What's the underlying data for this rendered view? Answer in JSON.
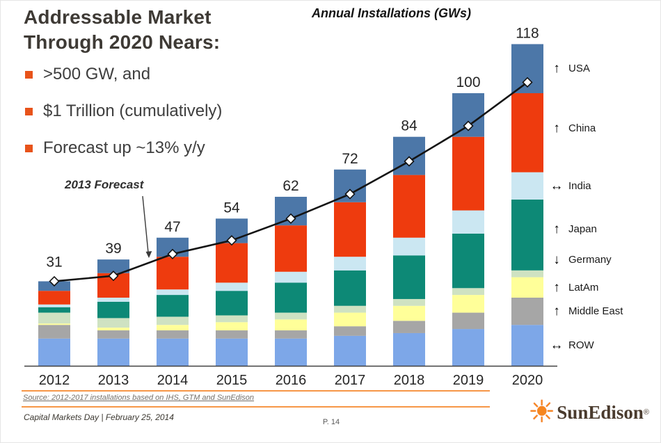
{
  "title": "Addressable Market\nThrough 2020 Nears:",
  "bullets": [
    ">500 GW, and",
    "$1 Trillion (cumulatively)",
    "Forecast up ~13% y/y"
  ],
  "annotation": "2013 Forecast",
  "chart_title": "Annual Installations (GWs)",
  "chart_data": {
    "type": "bar",
    "subtype": "stacked-bar-with-line-overlay",
    "title": "Annual Installations (GWs)",
    "categories": [
      "2012",
      "2013",
      "2014",
      "2015",
      "2016",
      "2017",
      "2018",
      "2019",
      "2020"
    ],
    "totals": [
      31,
      39,
      47,
      54,
      62,
      72,
      84,
      100,
      118
    ],
    "series": [
      {
        "name": "ROW",
        "color": "#7da7e8",
        "trend": "flat",
        "values": [
          10,
          10,
          10,
          10,
          10,
          11,
          12,
          13.5,
          15
        ]
      },
      {
        "name": "Middle East",
        "color": "#a6a6a6",
        "trend": "up",
        "values": [
          5,
          3,
          3,
          3,
          3,
          3.5,
          4.5,
          6,
          10
        ]
      },
      {
        "name": "LatAm",
        "color": "#ffff99",
        "trend": "up",
        "values": [
          0.5,
          1,
          2,
          3,
          4,
          5,
          5.5,
          6.5,
          7.5
        ]
      },
      {
        "name": "Germany",
        "color": "#cfe2c2",
        "trend": "down",
        "values": [
          4,
          3.5,
          3,
          2.5,
          2.5,
          2.5,
          2.5,
          2.5,
          2.5
        ]
      },
      {
        "name": "Japan",
        "color": "#0d8976",
        "trend": "up",
        "values": [
          2,
          6,
          8,
          9,
          11,
          13,
          16,
          20,
          26
        ]
      },
      {
        "name": "India",
        "color": "#cbe7f2",
        "trend": "flat",
        "values": [
          1,
          1.5,
          2,
          3,
          4,
          5,
          6.5,
          8.5,
          10
        ]
      },
      {
        "name": "China",
        "color": "#ee3b0e",
        "trend": "up",
        "values": [
          5,
          9,
          12,
          14.5,
          17,
          20,
          23,
          27,
          29
        ]
      },
      {
        "name": "USA",
        "color": "#4c77a8",
        "trend": "up",
        "values": [
          3.5,
          5,
          7,
          9,
          10.5,
          12,
          14,
          16,
          18
        ]
      }
    ],
    "line": {
      "name": "2013 Forecast",
      "color": "#141414",
      "marker": "open-diamond",
      "values": [
        31,
        33,
        41,
        46,
        54,
        63,
        75,
        88,
        104
      ]
    },
    "xlabel": "",
    "ylabel": "",
    "ylim": [
      0,
      125
    ],
    "grid": false,
    "legend_position": "right"
  },
  "footer": {
    "source": "Source: 2012-2017 installations based on IHS, GTM and SunEdison",
    "caption": "Capital Markets Day | February 25, 2014",
    "page": "P. 14",
    "logo_text": "SunEdison",
    "logo_reg": "®"
  },
  "colors": {
    "bullet_orange": "#e8531a",
    "rule_orange": "#f79646",
    "title_text": "#3e3a35",
    "axis_text": "#262626",
    "line_black": "#141414",
    "logo_orange": "#f6861f",
    "logo_brown": "#4a3b2e"
  }
}
